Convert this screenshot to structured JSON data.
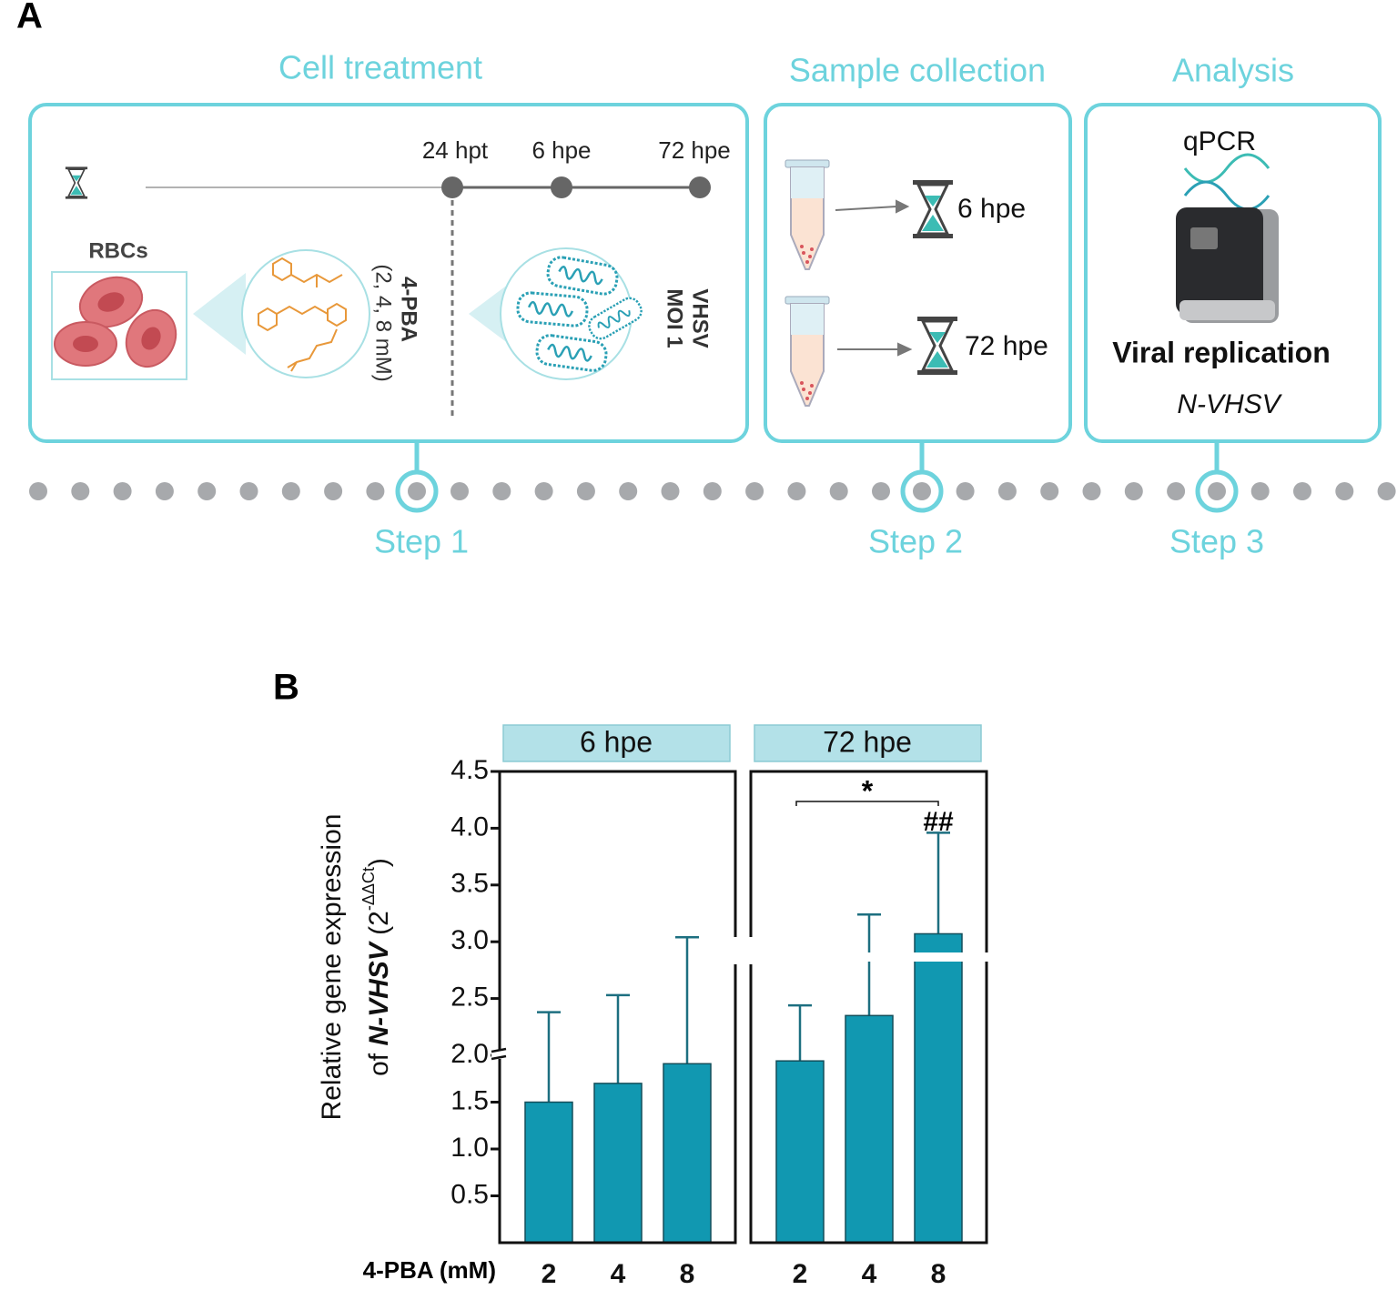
{
  "panel_a": {
    "label": "A",
    "sections": [
      {
        "title": "Cell treatment",
        "step": "Step 1"
      },
      {
        "title": "Sample collection",
        "step": "Step 2"
      },
      {
        "title": "Analysis",
        "step": "Step 3"
      }
    ],
    "timeline": [
      "24 hpt",
      "6 hpe",
      "72 hpe"
    ],
    "cells": "RBCs",
    "compound": "4-PBA",
    "doses": "(2, 4, 8 mM)",
    "virus": "VHSV",
    "virus_dose": "MOI 1",
    "collection": [
      "6 hpe",
      "72 hpe"
    ],
    "method": "qPCR",
    "readout": "Viral replication",
    "gene": "N-VHSV"
  },
  "chart_data": {
    "type": "bar",
    "label": "B",
    "ylabel": [
      "Relative gene expression",
      "of",
      "N-VHSV",
      "(2",
      "-ΔΔCt",
      ")"
    ],
    "xlabel": "4-PBA (mM)",
    "categories": [
      "2",
      "4",
      "8"
    ],
    "facets": [
      {
        "name": "6 hpe",
        "color": "#1198b1",
        "values": [
          1.5,
          1.7,
          1.91
        ],
        "errors": [
          0.88,
          0.83,
          1.13
        ]
      },
      {
        "name": "72 hpe",
        "color": "#1198b1",
        "values": [
          1.94,
          2.35,
          3.07
        ],
        "errors": [
          0.5,
          0.89,
          0.89
        ]
      }
    ],
    "ylim": [
      0,
      4.5
    ],
    "axis_break": 2,
    "yticks": [
      0.5,
      {
        "value": 1,
        "label": "1.0"
      },
      1.5,
      {
        "value": 2,
        "label": "2.0"
      },
      2.5,
      {
        "value": 3,
        "label": "3.0"
      },
      3.5,
      {
        "value": 4,
        "label": "4.0"
      },
      4.5
    ],
    "annotations": [
      {
        "text": "*",
        "facet": 1,
        "from": 0,
        "to": 2
      },
      {
        "text": "##",
        "facet": 1,
        "at": 2
      }
    ]
  }
}
